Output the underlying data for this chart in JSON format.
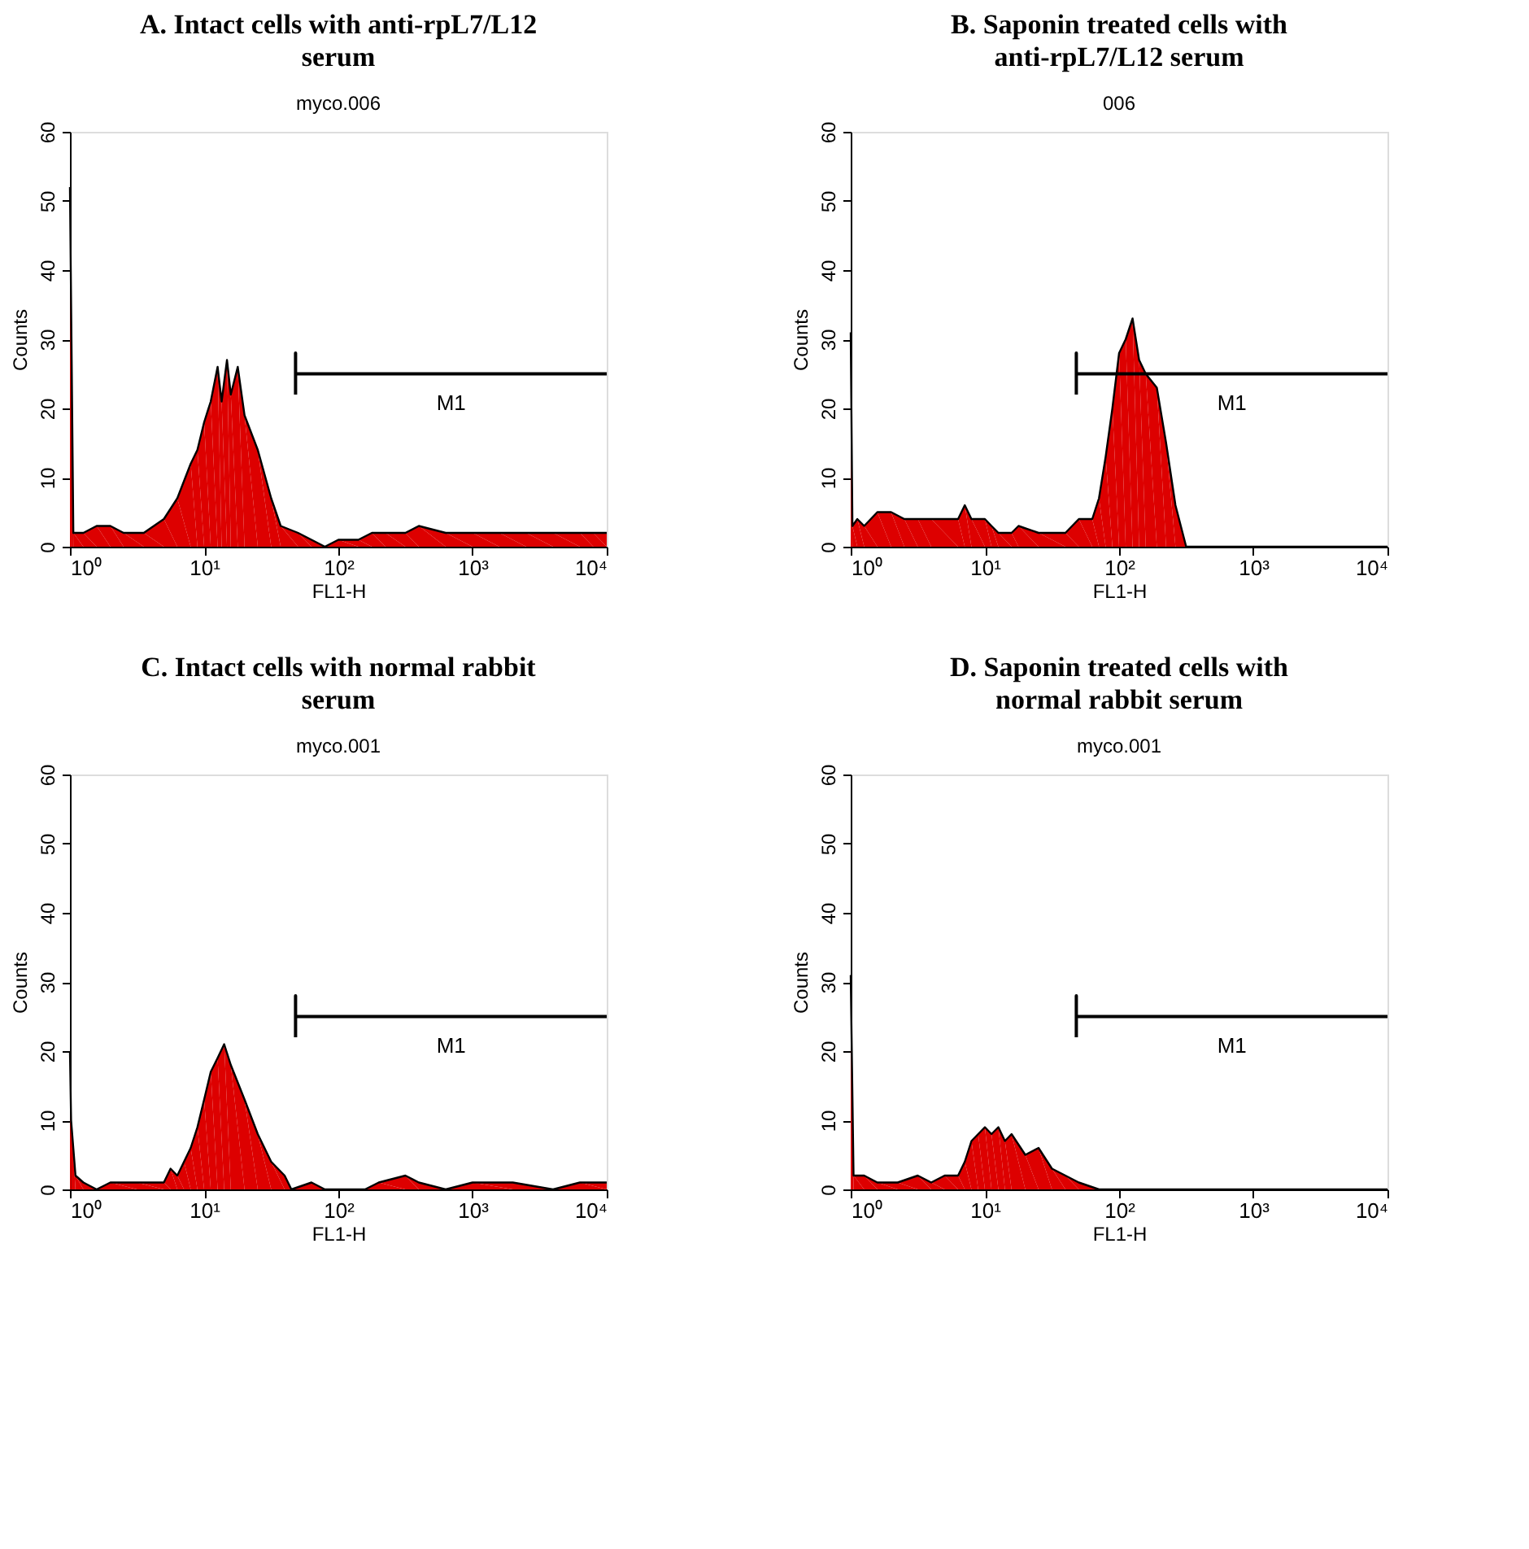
{
  "chart_data": [
    {
      "type": "area",
      "title": "A. Intact cells with anti-rpL7/L12 serum",
      "subtitle": "myco.006",
      "xlabel": "FL1-H",
      "ylabel": "Counts",
      "log": "x",
      "grid": false,
      "xlim": [
        1,
        10000
      ],
      "xticks": [
        {
          "value": 1,
          "label": "10⁰"
        },
        {
          "value": 10,
          "label": "10¹"
        },
        {
          "value": 100,
          "label": "10²"
        },
        {
          "value": 1000,
          "label": "10³"
        },
        {
          "value": 10000,
          "label": "10⁴"
        }
      ],
      "ylim": [
        0,
        60
      ],
      "yticks": [
        0,
        10,
        20,
        30,
        40,
        50,
        60
      ],
      "series": [
        {
          "color": "#dd0000",
          "x": [
            1,
            1.03,
            1.06,
            1.26,
            1.58,
            2.0,
            2.51,
            3.55,
            5.01,
            6.31,
            7.94,
            8.91,
            10,
            11.2,
            12.6,
            13.5,
            14.8,
            15.8,
            17.8,
            20.0,
            25.1,
            31.6,
            37.2,
            50.1,
            63.1,
            79.4,
            100,
            141,
            178,
            224,
            316,
            398,
            631,
            1000,
            1585,
            2512,
            3981,
            6310,
            7943,
            10000
          ],
          "values": [
            52,
            27,
            2,
            2,
            3,
            3,
            2,
            2,
            4,
            7,
            12,
            14,
            18,
            21,
            26,
            21,
            27,
            22,
            26,
            19,
            14,
            7,
            3,
            2,
            1,
            0,
            1,
            1,
            2,
            2,
            2,
            3,
            2,
            2,
            2,
            2,
            2,
            2,
            2,
            2
          ]
        },
        {
          "type": "line",
          "color": "#000000",
          "x": [
            48,
            48,
            48,
            10000
          ],
          "values": [
            22,
            28,
            25,
            25
          ]
        }
      ],
      "annotations": [
        "M1"
      ]
    },
    {
      "type": "area",
      "title": "B. Saponin treated cells with anti-rpL7/L12 serum",
      "subtitle": "006",
      "xlabel": "FL1-H",
      "ylabel": "Counts",
      "log": "x",
      "grid": false,
      "xlim": [
        1,
        10000
      ],
      "xticks": [
        {
          "value": 1,
          "label": "10⁰"
        },
        {
          "value": 10,
          "label": "10¹"
        },
        {
          "value": 100,
          "label": "10²"
        },
        {
          "value": 1000,
          "label": "10³"
        },
        {
          "value": 10000,
          "label": "10⁴"
        }
      ],
      "ylim": [
        0,
        60
      ],
      "yticks": [
        0,
        10,
        20,
        30,
        40,
        50,
        60
      ],
      "series": [
        {
          "color": "#dd0000",
          "x": [
            1,
            1.03,
            1.12,
            1.26,
            1.58,
            2.0,
            2.51,
            3.16,
            3.98,
            6.31,
            7.08,
            7.94,
            10,
            11.2,
            12.6,
            15.8,
            17.8,
            25.1,
            39.8,
            50.1,
            63.1,
            70.8,
            79.4,
            89.1,
            100,
            112,
            126,
            141,
            158,
            191,
            224,
            263,
            316,
            10000
          ],
          "values": [
            31,
            3,
            4,
            3,
            5,
            5,
            4,
            4,
            4,
            4,
            6,
            4,
            4,
            3,
            2,
            2,
            3,
            2,
            2,
            4,
            4,
            7,
            13,
            20,
            28,
            30,
            33,
            27,
            25,
            23,
            15,
            6,
            0,
            0
          ]
        },
        {
          "type": "line",
          "color": "#000000",
          "x": [
            48,
            48,
            48,
            10000
          ],
          "values": [
            22,
            28,
            25,
            25
          ]
        }
      ],
      "annotations": [
        "M1"
      ]
    },
    {
      "type": "area",
      "title": "C. Intact cells with normal rabbit serum",
      "subtitle": "myco.001",
      "xlabel": "FL1-H",
      "ylabel": "Counts",
      "log": "x",
      "grid": false,
      "xlim": [
        1,
        10000
      ],
      "xticks": [
        {
          "value": 1,
          "label": "10⁰"
        },
        {
          "value": 10,
          "label": "10¹"
        },
        {
          "value": 100,
          "label": "10²"
        },
        {
          "value": 1000,
          "label": "10³"
        },
        {
          "value": 10000,
          "label": "10⁴"
        }
      ],
      "ylim": [
        0,
        60
      ],
      "yticks": [
        0,
        10,
        20,
        30,
        40,
        50,
        60
      ],
      "series": [
        {
          "color": "#dd0000",
          "x": [
            1,
            1.02,
            1.1,
            1.26,
            1.58,
            2.0,
            3.16,
            5.01,
            5.62,
            6.31,
            7.08,
            7.94,
            8.91,
            10,
            11.2,
            12.6,
            14.1,
            15.8,
            20.0,
            25.1,
            31.6,
            39.8,
            44.7,
            63.1,
            79.4,
            158,
            200,
            316,
            398,
            631,
            1000,
            1995,
            3981,
            6310,
            10000
          ],
          "values": [
            20,
            10,
            2,
            1,
            0,
            1,
            1,
            1,
            3,
            2,
            4,
            6,
            9,
            13,
            17,
            19,
            21,
            18,
            13,
            8,
            4,
            2,
            0,
            1,
            0,
            0,
            1,
            2,
            1,
            0,
            1,
            1,
            0,
            1,
            1
          ]
        },
        {
          "type": "line",
          "color": "#000000",
          "x": [
            48,
            48,
            48,
            10000
          ],
          "values": [
            22,
            28,
            25,
            25
          ]
        }
      ],
      "annotations": [
        "M1"
      ]
    },
    {
      "type": "area",
      "title": "D. Saponin treated cells with normal rabbit serum",
      "subtitle": "myco.001",
      "xlabel": "FL1-H",
      "ylabel": "Counts",
      "log": "x",
      "grid": false,
      "xlim": [
        1,
        10000
      ],
      "xticks": [
        {
          "value": 1,
          "label": "10⁰"
        },
        {
          "value": 10,
          "label": "10¹"
        },
        {
          "value": 100,
          "label": "10²"
        },
        {
          "value": 1000,
          "label": "10³"
        },
        {
          "value": 10000,
          "label": "10⁴"
        }
      ],
      "ylim": [
        0,
        60
      ],
      "yticks": [
        0,
        10,
        20,
        30,
        40,
        50,
        60
      ],
      "series": [
        {
          "color": "#dd0000",
          "x": [
            1,
            1.05,
            1.26,
            1.58,
            2.24,
            3.16,
            3.98,
            5.01,
            6.31,
            7.08,
            7.94,
            8.91,
            10,
            11.2,
            12.6,
            14.1,
            15.8,
            20.0,
            25.1,
            31.6,
            39.8,
            50.1,
            70.8,
            10000
          ],
          "values": [
            31,
            2,
            2,
            1,
            1,
            2,
            1,
            2,
            2,
            4,
            7,
            8,
            9,
            8,
            9,
            7,
            8,
            5,
            6,
            3,
            2,
            1,
            0,
            0
          ]
        },
        {
          "type": "line",
          "color": "#000000",
          "x": [
            48,
            48,
            48,
            10000
          ],
          "values": [
            22,
            28,
            25,
            25
          ]
        }
      ],
      "annotations": [
        "M1"
      ]
    }
  ]
}
